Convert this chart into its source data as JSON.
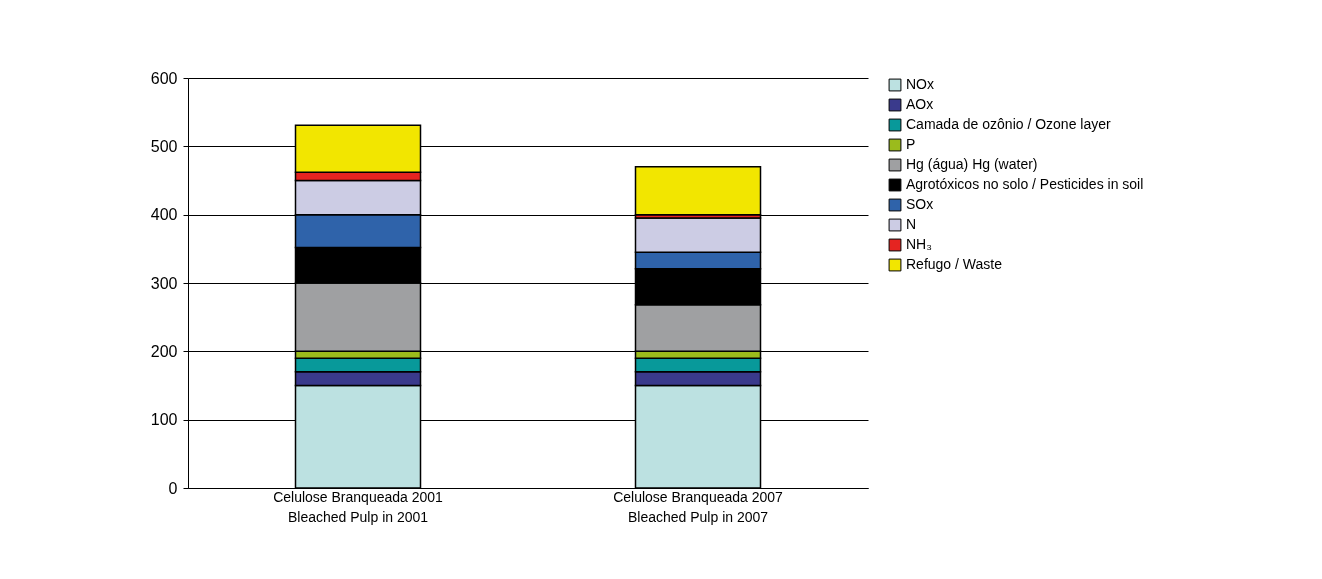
{
  "chart_data": {
    "type": "bar",
    "stacked": true,
    "categories": [
      "Celulose Branqueada 2001\nBleached Pulp in 2001",
      "Celulose Branqueada 2007\nBleached Pulp in 2007"
    ],
    "series": [
      {
        "name": "NOx",
        "color": "#bce1e1",
        "values": [
          150,
          150
        ]
      },
      {
        "name": "AOx",
        "color": "#3a3a8c",
        "values": [
          20,
          20
        ]
      },
      {
        "name": "Camada de ozônio / Ozone layer",
        "color": "#08999a",
        "values": [
          20,
          20
        ]
      },
      {
        "name": "P",
        "color": "#9bbb1c",
        "values": [
          10,
          10
        ]
      },
      {
        "name": "Hg (água) Hg (water)",
        "color": "#9fa0a2",
        "values": [
          100,
          68
        ]
      },
      {
        "name": "Agrotóxicos no solo / Pesticides in soil",
        "color": "#000000",
        "values": [
          52,
          53
        ]
      },
      {
        "name": "SOx",
        "color": "#2f63aa",
        "values": [
          48,
          24
        ]
      },
      {
        "name": "N",
        "color": "#cccce4",
        "values": [
          50,
          50
        ]
      },
      {
        "name": "NH₃",
        "color": "#e52421",
        "values": [
          12,
          5
        ]
      },
      {
        "name": "Refugo / Waste",
        "color": "#f2e600",
        "values": [
          69,
          70
        ]
      }
    ],
    "ylim": [
      0,
      600
    ],
    "yticks": [
      0,
      100,
      200,
      300,
      400,
      500,
      600
    ],
    "grid": "y",
    "legend": "right"
  }
}
